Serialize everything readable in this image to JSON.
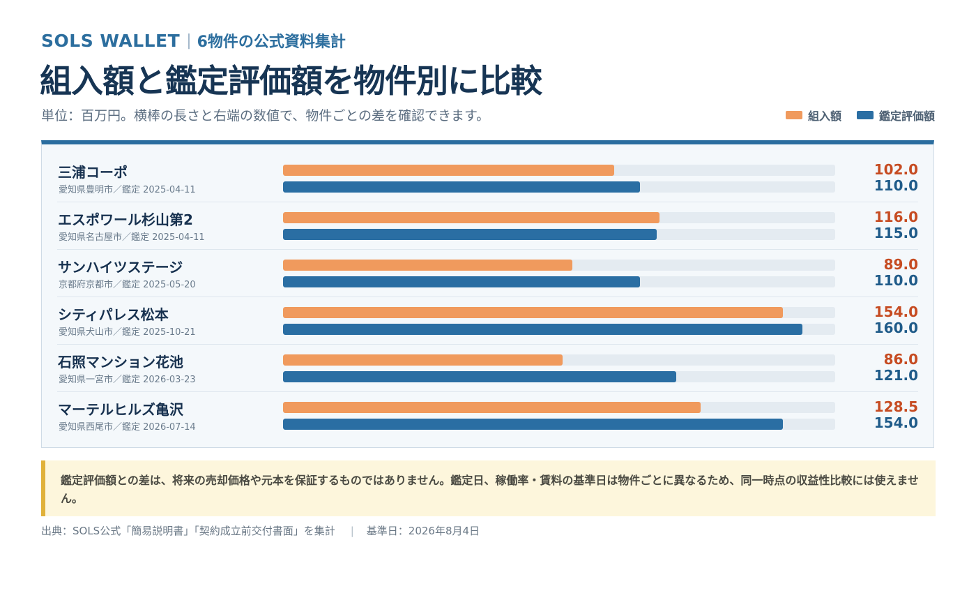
{
  "header": {
    "brand": "SOLS WALLET",
    "separator": "|",
    "subtitle": "6物件の公式資料集計",
    "title": "組入額と鑑定評価額を物件別に比較",
    "unit_note": "単位：百万円。横棒の長さと右端の数値で、物件ごとの差を確認できます。"
  },
  "colors": {
    "acquisition": "#f09a5d",
    "appraisal": "#2a6ea3",
    "accent": "#2a6d9f"
  },
  "chart_data": {
    "type": "bar",
    "orientation": "horizontal",
    "title": "組入額と鑑定評価額を物件別に比較",
    "unit": "百万円",
    "xlim": [
      0,
      170
    ],
    "grid": false,
    "legend_position": "top-right",
    "legend": [
      "組入額",
      "鑑定評価額"
    ],
    "categories": [
      "三浦コーポ",
      "エスポワール杉山第2",
      "サンハイツステージ",
      "シティパレス松本",
      "石照マンション花池",
      "マーテルヒルズ亀沢"
    ],
    "series": [
      {
        "name": "組入額",
        "values": [
          102.0,
          116.0,
          89.0,
          154.0,
          86.0,
          128.5
        ],
        "labels": [
          "102.0",
          "116.0",
          "89.0",
          "154.0",
          "86.0",
          "128.5"
        ]
      },
      {
        "name": "鑑定評価額",
        "values": [
          110.0,
          115.0,
          110.0,
          160.0,
          121.0,
          154.0
        ],
        "labels": [
          "110.0",
          "115.0",
          "110.0",
          "160.0",
          "121.0",
          "154.0"
        ]
      }
    ],
    "rows": [
      {
        "name": "三浦コーポ",
        "meta": "愛知県豊明市／鑑定 2025-04-11"
      },
      {
        "name": "エスポワール杉山第2",
        "meta": "愛知県名古屋市／鑑定 2025-04-11"
      },
      {
        "name": "サンハイツステージ",
        "meta": "京都府京都市／鑑定 2025-05-20"
      },
      {
        "name": "シティパレス松本",
        "meta": "愛知県犬山市／鑑定 2025-10-21"
      },
      {
        "name": "石照マンション花池",
        "meta": "愛知県一宮市／鑑定 2026-03-23"
      },
      {
        "name": "マーテルヒルズ亀沢",
        "meta": "愛知県西尾市／鑑定 2026-07-14"
      }
    ]
  },
  "notice": "鑑定評価額との差は、将来の売却価格や元本を保証するものではありません。鑑定日、稼働率・賃料の基準日は物件ごとに異なるため、同一時点の収益性比較には使えません。",
  "footer": {
    "source": "出典：SOLS公式「簡易説明書」「契約成立前交付書面」を集計",
    "separator": "|",
    "date": "基準日：2026年8月4日"
  }
}
